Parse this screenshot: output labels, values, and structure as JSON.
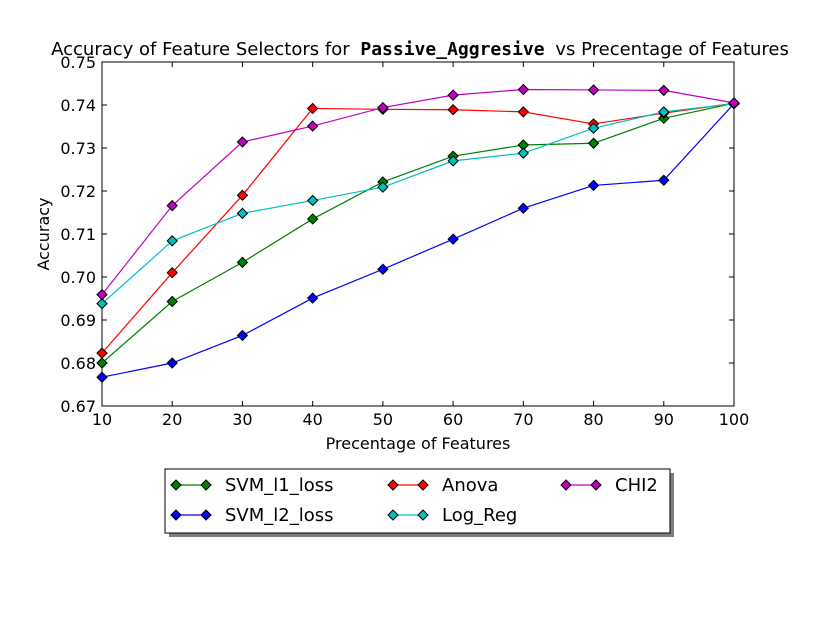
{
  "chart_data": {
    "type": "line",
    "title": {
      "prefix": "Accuracy of Feature Selectors for",
      "model": "Passive_Aggresive",
      "suffix": "vs Precentage of Features"
    },
    "xlabel": "Precentage of Features",
    "ylabel": "Accuracy",
    "xlim": [
      10,
      100
    ],
    "ylim": [
      0.67,
      0.75
    ],
    "x_ticks": [
      10,
      20,
      30,
      40,
      50,
      60,
      70,
      80,
      90,
      100
    ],
    "x_tick_labels": [
      "10",
      "20",
      "30",
      "40",
      "50",
      "60",
      "70",
      "80",
      "90",
      "100"
    ],
    "y_ticks": [
      0.67,
      0.68,
      0.69,
      0.7,
      0.71,
      0.72,
      0.73,
      0.74,
      0.75
    ],
    "y_tick_labels": [
      "0.67",
      "0.68",
      "0.69",
      "0.70",
      "0.71",
      "0.72",
      "0.73",
      "0.74",
      "0.75"
    ],
    "grid": false,
    "legend_placement": "bottom-center",
    "x": [
      10,
      20,
      30,
      40,
      50,
      60,
      70,
      80,
      90,
      100
    ],
    "series": [
      {
        "name": "SVM_l1_loss",
        "color": "#008000",
        "values": [
          0.68,
          0.6943,
          0.7034,
          0.7135,
          0.7221,
          0.7281,
          0.7307,
          0.7311,
          0.7369,
          0.7404
        ]
      },
      {
        "name": "SVM_l2_loss",
        "color": "#0000ff",
        "values": [
          0.6767,
          0.68,
          0.6864,
          0.6951,
          0.7018,
          0.7088,
          0.716,
          0.7213,
          0.7225,
          0.7403
        ]
      },
      {
        "name": "Anova",
        "color": "#ff0000",
        "values": [
          0.6823,
          0.701,
          0.719,
          0.7392,
          0.739,
          0.7389,
          0.7384,
          0.7356,
          0.7381,
          0.7404
        ]
      },
      {
        "name": "Log_Reg",
        "color": "#00bfbf",
        "values": [
          0.6938,
          0.7084,
          0.7148,
          0.7178,
          0.7209,
          0.727,
          0.7288,
          0.7346,
          0.7384,
          0.7403
        ]
      },
      {
        "name": "CHI2",
        "color": "#bf00bf",
        "values": [
          0.6959,
          0.7166,
          0.7314,
          0.7351,
          0.7394,
          0.7423,
          0.7436,
          0.7435,
          0.7434,
          0.7405
        ]
      }
    ]
  }
}
